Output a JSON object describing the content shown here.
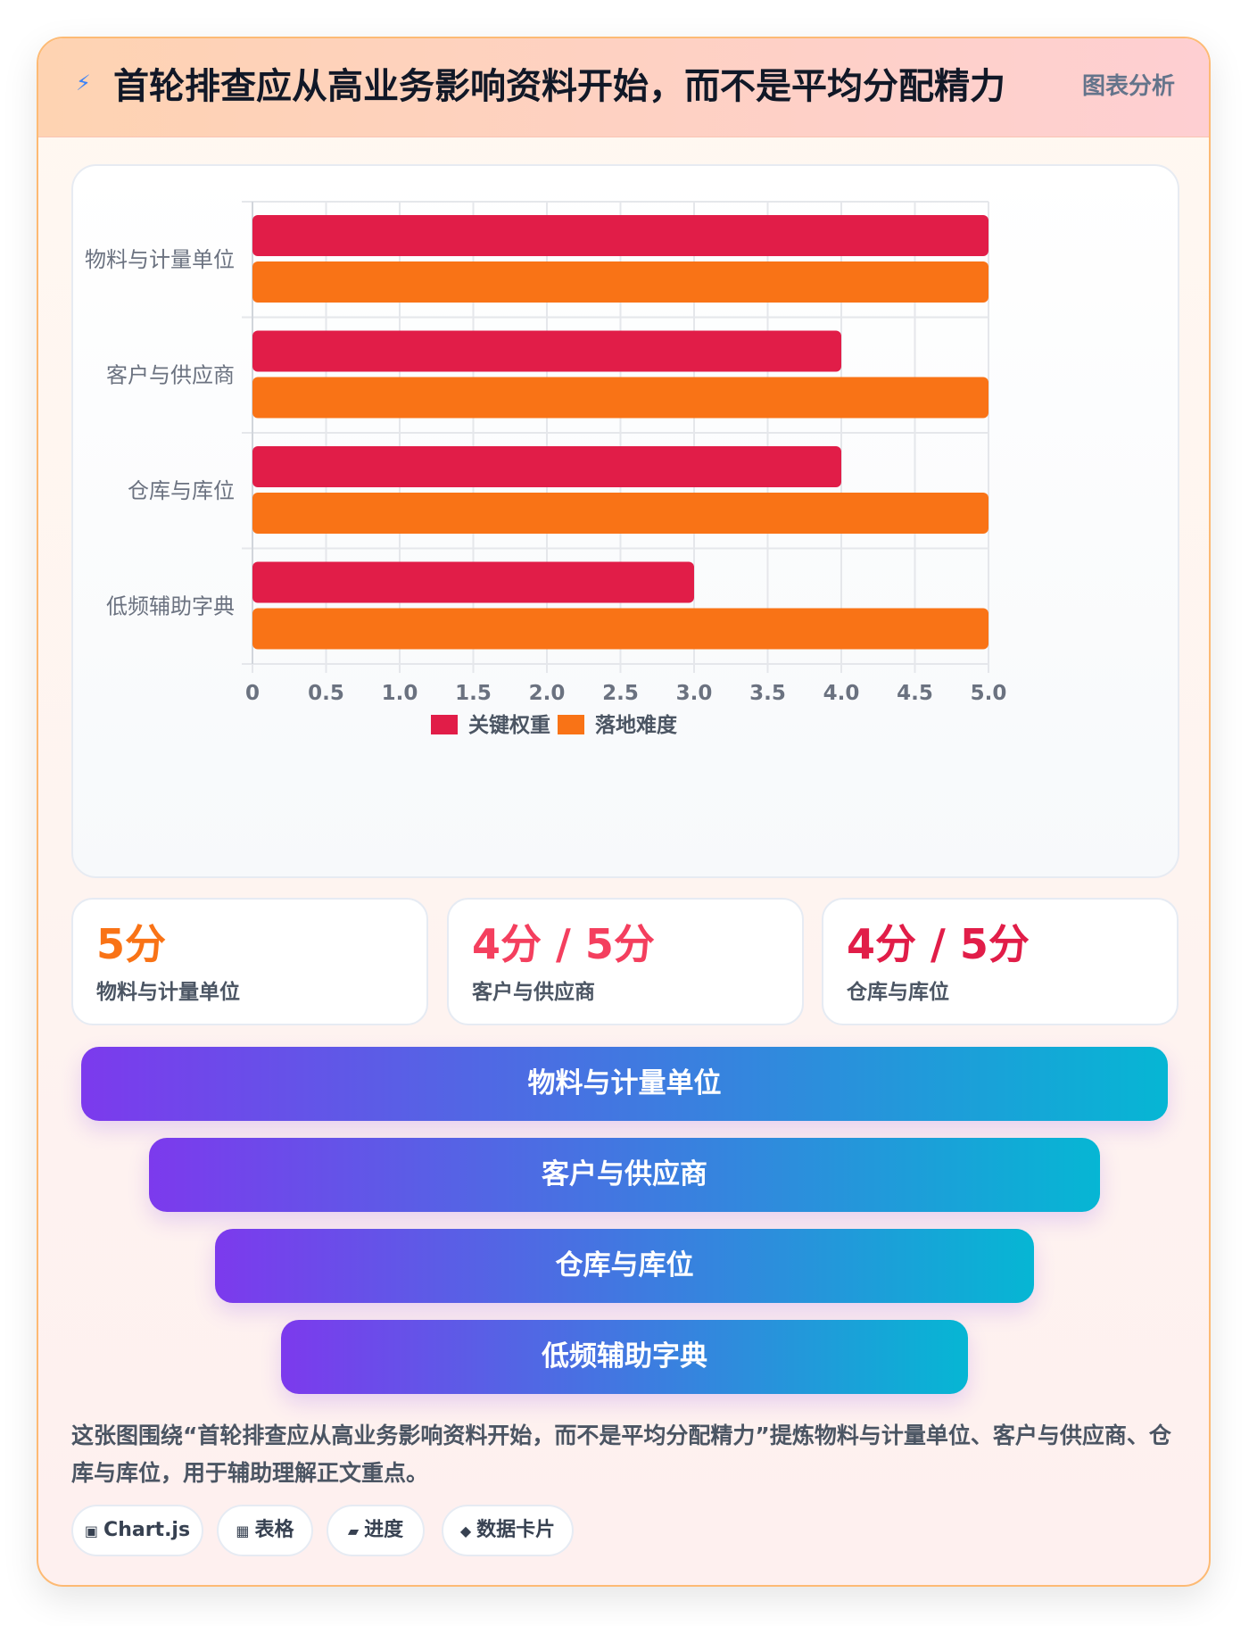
{
  "header": {
    "icon": "lightning-icon",
    "title": "首轮排查应从高业务影响资料开始，而不是平均分配精力",
    "tag": "图表分析"
  },
  "chart_data": {
    "type": "bar",
    "orientation": "horizontal",
    "categories": [
      "物料与计量单位",
      "客户与供应商",
      "仓库与库位",
      "低频辅助字典"
    ],
    "series": [
      {
        "name": "关键权重",
        "values": [
          5,
          4,
          4,
          3
        ],
        "color": "#e11d48"
      },
      {
        "name": "落地难度",
        "values": [
          5,
          5,
          5,
          5
        ],
        "color": "#f97316"
      }
    ],
    "xlim": [
      0,
      5
    ],
    "ticks": [
      "0",
      "0.5",
      "1.0",
      "1.5",
      "2.0",
      "2.5",
      "3.0",
      "3.5",
      "4.0",
      "4.5",
      "5.0"
    ],
    "grid": true,
    "legend_position": "bottom"
  },
  "stats": [
    {
      "value": "5分",
      "label": "物料与计量单位",
      "color": "#f97316"
    },
    {
      "value": "4分 / 5分",
      "label": "客户与供应商",
      "color": "#f43f5e"
    },
    {
      "value": "4分 / 5分",
      "label": "仓库与库位",
      "color": "#e11d48"
    }
  ],
  "funnel": [
    "物料与计量单位",
    "客户与供应商",
    "仓库与库位",
    "低频辅助字典"
  ],
  "description": "这张图围绕“首轮排查应从高业务影响资料开始，而不是平均分配精力”提炼物料与计量单位、客户与供应商、仓库与库位，用于辅助理解正文重点。",
  "chips": [
    {
      "icon": "▣",
      "label": "Chart.js"
    },
    {
      "icon": "▦",
      "label": "表格"
    },
    {
      "icon": "▰",
      "label": "进度"
    },
    {
      "icon": "◆",
      "label": "数据卡片"
    }
  ]
}
